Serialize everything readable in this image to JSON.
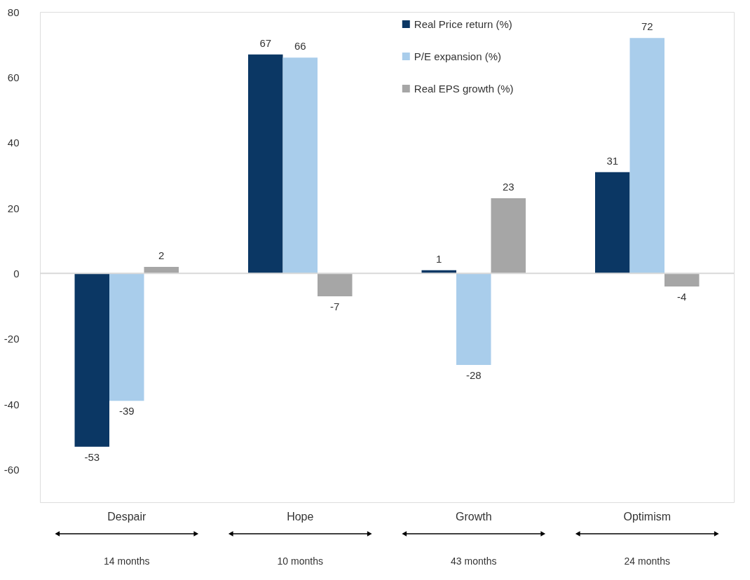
{
  "chart_data": {
    "type": "bar",
    "categories": [
      "Despair",
      "Hope",
      "Growth",
      "Optimism"
    ],
    "series": [
      {
        "name": "Real Price return (%)",
        "color": "#0b3764",
        "values": [
          -53,
          67,
          1,
          31
        ]
      },
      {
        "name": "P/E expansion (%)",
        "color": "#a9cdeb",
        "values": [
          -39,
          66,
          -28,
          72
        ]
      },
      {
        "name": "Real EPS growth (%)",
        "color": "#a6a6a6",
        "values": [
          2,
          -7,
          23,
          -4
        ]
      }
    ],
    "ylim": [
      -70,
      80
    ],
    "yticks": [
      -60,
      -40,
      -20,
      0,
      20,
      40,
      60,
      80
    ],
    "data_labels": true,
    "grid": false,
    "legend": "top right",
    "ref_lines": [
      {
        "axis": "y",
        "value": 0,
        "color": "#d9d9d9"
      }
    ],
    "annotations": [
      "14 months",
      "10 months",
      "43 months",
      "24 months"
    ]
  }
}
